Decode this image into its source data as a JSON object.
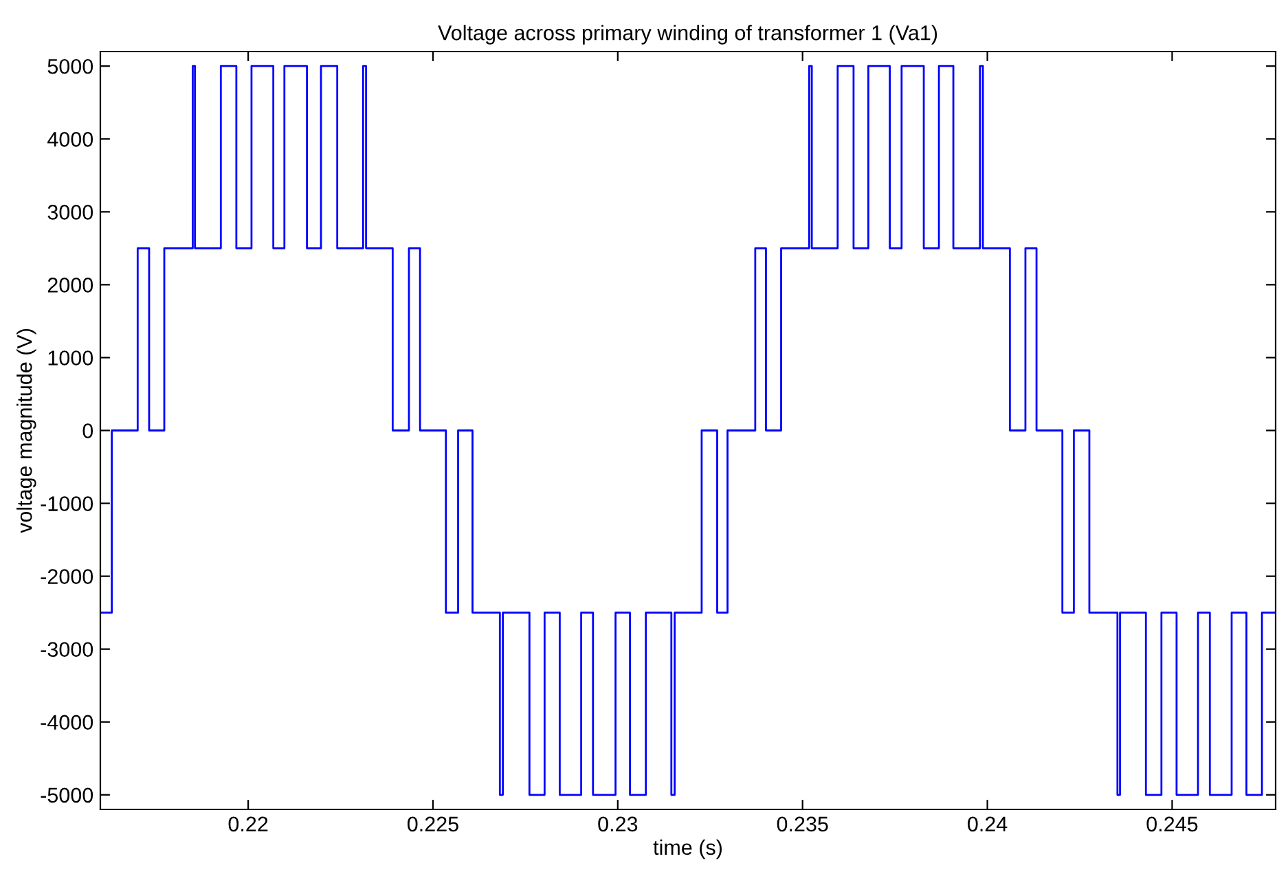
{
  "chart_data": {
    "type": "step",
    "title": "Voltage across primary winding of transformer 1 (Va1)",
    "xlabel": "time (s)",
    "ylabel": "voltage magnitude (V)",
    "xlim": [
      0.216,
      0.2478
    ],
    "ylim": [
      -5200,
      5200
    ],
    "xticks": [
      0.22,
      0.225,
      0.23,
      0.235,
      0.24,
      0.245
    ],
    "yticks": [
      -5000,
      -4000,
      -3000,
      -2000,
      -1000,
      0,
      1000,
      2000,
      3000,
      4000,
      5000
    ],
    "grid": false,
    "legend": false,
    "marker": "none",
    "line_style": "solid",
    "series": [
      {
        "color": "#0000ff",
        "x": [
          0.216,
          0.21631,
          0.21701,
          0.21732,
          0.21773,
          0.2185,
          0.21856,
          0.21926,
          0.21968,
          0.22009,
          0.22068,
          0.22098,
          0.22159,
          0.22197,
          0.22241,
          0.22311,
          0.22319,
          0.22391,
          0.22435,
          0.22465,
          0.22535,
          0.22568,
          0.22607,
          0.22681,
          0.22689,
          0.22761,
          0.22802,
          0.22843,
          0.22901,
          0.22933,
          0.22994,
          0.23033,
          0.23076,
          0.23145,
          0.23154,
          0.23227,
          0.23269,
          0.23297,
          0.23372,
          0.23401,
          0.23442,
          0.23518,
          0.23525,
          0.23595,
          0.23638,
          0.23678,
          0.23736,
          0.23768,
          0.23828,
          0.23869,
          0.23908,
          0.2398,
          0.23988,
          0.24061,
          0.24103,
          0.24133,
          0.24203,
          0.24234,
          0.24276,
          0.24352,
          0.24359,
          0.24429,
          0.24471,
          0.24512,
          0.2457,
          0.24602,
          0.24661,
          0.24701,
          0.24743,
          0.2478
        ],
        "values": [
          -2500,
          0,
          2500,
          0,
          2500,
          5000,
          2500,
          5000,
          2500,
          5000,
          2500,
          5000,
          2500,
          5000,
          2500,
          5000,
          2500,
          0,
          2500,
          0,
          -2500,
          0,
          -2500,
          -5000,
          -2500,
          -5000,
          -2500,
          -5000,
          -2500,
          -5000,
          -2500,
          -5000,
          -2500,
          -5000,
          -2500,
          0,
          -2500,
          0,
          2500,
          0,
          2500,
          5000,
          2500,
          5000,
          2500,
          5000,
          2500,
          5000,
          2500,
          5000,
          2500,
          5000,
          2500,
          0,
          2500,
          0,
          -2500,
          0,
          -2500,
          -5000,
          -2500,
          -5000,
          -2500,
          -5000,
          -2500,
          -5000,
          -2500,
          -5000,
          -2500,
          -2500
        ]
      }
    ]
  }
}
